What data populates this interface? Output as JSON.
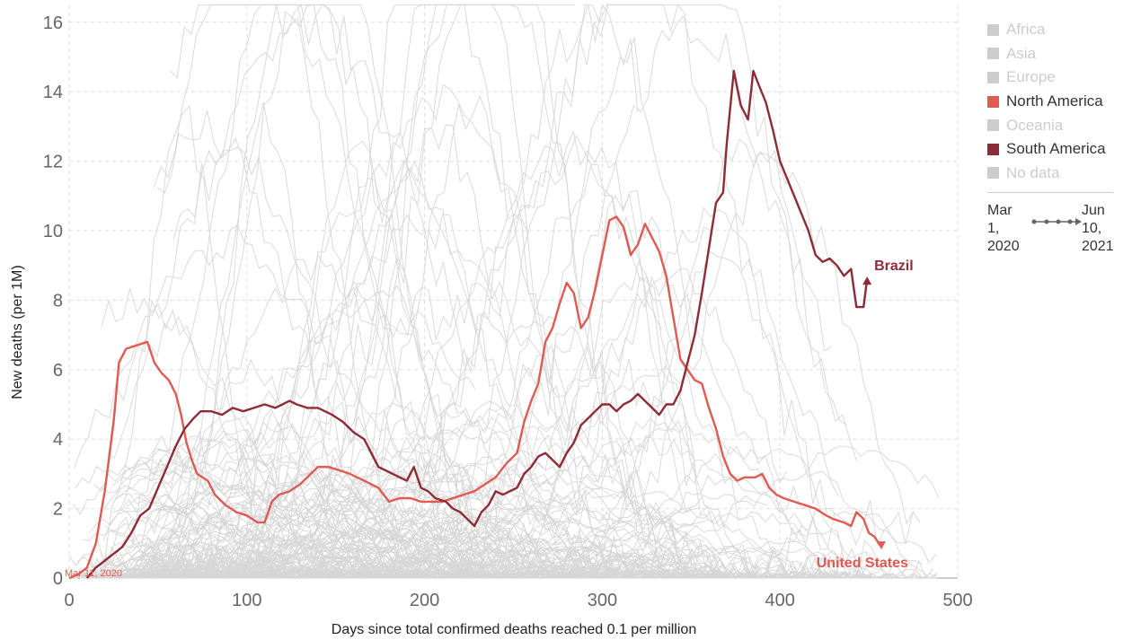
{
  "chart_data": {
    "type": "line",
    "title": "",
    "xlabel": "Days since total confirmed deaths reached 0.1 per million",
    "ylabel": "New deaths (per 1M)",
    "xlim": [
      0,
      500
    ],
    "ylim": [
      0,
      16.5
    ],
    "xticks": [
      "0",
      "100",
      "200",
      "300",
      "400",
      "500"
    ],
    "yticks": [
      "0",
      "2",
      "4",
      "6",
      "8",
      "10",
      "12",
      "14",
      "16"
    ],
    "grid": true,
    "legend_position": "right",
    "legend": [
      {
        "name": "Africa",
        "color": "#cccccc",
        "active": false
      },
      {
        "name": "Asia",
        "color": "#cccccc",
        "active": false
      },
      {
        "name": "Europe",
        "color": "#cccccc",
        "active": false
      },
      {
        "name": "North America",
        "color": "#e05a52",
        "active": true
      },
      {
        "name": "Oceania",
        "color": "#cccccc",
        "active": false
      },
      {
        "name": "South America",
        "color": "#8e2b36",
        "active": true
      },
      {
        "name": "No data",
        "color": "#cccccc",
        "active": false
      }
    ],
    "timeline": {
      "start": [
        "Mar",
        "1,",
        "2020"
      ],
      "end": [
        "Jun",
        "10,",
        "2021"
      ]
    },
    "annotation": "Mar 11, 2020",
    "series": [
      {
        "name": "United States",
        "color": "#e05a52",
        "points": [
          [
            0,
            0
          ],
          [
            5,
            0.1
          ],
          [
            10,
            0.3
          ],
          [
            15,
            1.0
          ],
          [
            20,
            2.5
          ],
          [
            25,
            4.5
          ],
          [
            28,
            6.2
          ],
          [
            32,
            6.6
          ],
          [
            38,
            6.7
          ],
          [
            44,
            6.8
          ],
          [
            48,
            6.2
          ],
          [
            52,
            5.9
          ],
          [
            56,
            5.7
          ],
          [
            60,
            5.3
          ],
          [
            63,
            4.7
          ],
          [
            66,
            3.9
          ],
          [
            69,
            3.4
          ],
          [
            72,
            3.0
          ],
          [
            78,
            2.8
          ],
          [
            82,
            2.4
          ],
          [
            88,
            2.1
          ],
          [
            94,
            1.9
          ],
          [
            100,
            1.8
          ],
          [
            106,
            1.6
          ],
          [
            110,
            1.6
          ],
          [
            114,
            2.2
          ],
          [
            118,
            2.4
          ],
          [
            124,
            2.5
          ],
          [
            130,
            2.7
          ],
          [
            136,
            3.0
          ],
          [
            140,
            3.2
          ],
          [
            146,
            3.2
          ],
          [
            152,
            3.1
          ],
          [
            158,
            3.0
          ],
          [
            166,
            2.8
          ],
          [
            174,
            2.6
          ],
          [
            180,
            2.2
          ],
          [
            186,
            2.3
          ],
          [
            192,
            2.3
          ],
          [
            198,
            2.2
          ],
          [
            204,
            2.2
          ],
          [
            210,
            2.2
          ],
          [
            216,
            2.3
          ],
          [
            222,
            2.4
          ],
          [
            228,
            2.5
          ],
          [
            234,
            2.7
          ],
          [
            240,
            2.9
          ],
          [
            246,
            3.3
          ],
          [
            252,
            3.6
          ],
          [
            256,
            4.5
          ],
          [
            260,
            5.1
          ],
          [
            264,
            5.6
          ],
          [
            268,
            6.8
          ],
          [
            272,
            7.2
          ],
          [
            276,
            7.9
          ],
          [
            280,
            8.5
          ],
          [
            284,
            8.2
          ],
          [
            288,
            7.2
          ],
          [
            292,
            7.5
          ],
          [
            296,
            8.3
          ],
          [
            300,
            9.3
          ],
          [
            304,
            10.3
          ],
          [
            308,
            10.4
          ],
          [
            312,
            10.1
          ],
          [
            316,
            9.3
          ],
          [
            320,
            9.6
          ],
          [
            324,
            10.2
          ],
          [
            328,
            9.8
          ],
          [
            332,
            9.4
          ],
          [
            336,
            8.7
          ],
          [
            340,
            7.5
          ],
          [
            344,
            6.3
          ],
          [
            348,
            6.0
          ],
          [
            352,
            5.7
          ],
          [
            356,
            5.6
          ],
          [
            360,
            4.9
          ],
          [
            364,
            4.3
          ],
          [
            368,
            3.5
          ],
          [
            372,
            3.0
          ],
          [
            376,
            2.8
          ],
          [
            380,
            2.9
          ],
          [
            386,
            2.9
          ],
          [
            390,
            3.0
          ],
          [
            394,
            2.6
          ],
          [
            398,
            2.4
          ],
          [
            402,
            2.3
          ],
          [
            408,
            2.2
          ],
          [
            414,
            2.1
          ],
          [
            420,
            2.0
          ],
          [
            426,
            1.8
          ],
          [
            430,
            1.7
          ],
          [
            436,
            1.6
          ],
          [
            440,
            1.5
          ],
          [
            443,
            1.9
          ],
          [
            447,
            1.7
          ],
          [
            450,
            1.3
          ],
          [
            453,
            1.2
          ],
          [
            457,
            0.9
          ]
        ]
      },
      {
        "name": "Brazil",
        "color": "#8e2b36",
        "points": [
          [
            10,
            0
          ],
          [
            15,
            0.3
          ],
          [
            20,
            0.5
          ],
          [
            25,
            0.7
          ],
          [
            30,
            0.9
          ],
          [
            35,
            1.3
          ],
          [
            40,
            1.8
          ],
          [
            45,
            2.0
          ],
          [
            50,
            2.6
          ],
          [
            55,
            3.2
          ],
          [
            60,
            3.8
          ],
          [
            65,
            4.3
          ],
          [
            70,
            4.6
          ],
          [
            74,
            4.8
          ],
          [
            80,
            4.8
          ],
          [
            86,
            4.7
          ],
          [
            92,
            4.9
          ],
          [
            98,
            4.8
          ],
          [
            104,
            4.9
          ],
          [
            110,
            5.0
          ],
          [
            116,
            4.9
          ],
          [
            120,
            5.0
          ],
          [
            124,
            5.1
          ],
          [
            128,
            5.0
          ],
          [
            134,
            4.9
          ],
          [
            140,
            4.9
          ],
          [
            148,
            4.7
          ],
          [
            154,
            4.5
          ],
          [
            160,
            4.2
          ],
          [
            166,
            4.0
          ],
          [
            170,
            3.6
          ],
          [
            174,
            3.2
          ],
          [
            178,
            3.1
          ],
          [
            182,
            3.0
          ],
          [
            186,
            2.9
          ],
          [
            190,
            2.8
          ],
          [
            194,
            3.2
          ],
          [
            198,
            2.6
          ],
          [
            202,
            2.5
          ],
          [
            206,
            2.3
          ],
          [
            212,
            2.2
          ],
          [
            216,
            2.0
          ],
          [
            220,
            1.9
          ],
          [
            224,
            1.7
          ],
          [
            228,
            1.5
          ],
          [
            232,
            1.9
          ],
          [
            236,
            2.1
          ],
          [
            240,
            2.5
          ],
          [
            244,
            2.4
          ],
          [
            248,
            2.5
          ],
          [
            252,
            2.6
          ],
          [
            256,
            3.0
          ],
          [
            260,
            3.2
          ],
          [
            264,
            3.5
          ],
          [
            268,
            3.6
          ],
          [
            272,
            3.4
          ],
          [
            276,
            3.2
          ],
          [
            280,
            3.6
          ],
          [
            284,
            3.9
          ],
          [
            288,
            4.4
          ],
          [
            292,
            4.6
          ],
          [
            296,
            4.8
          ],
          [
            300,
            5.0
          ],
          [
            304,
            5.0
          ],
          [
            308,
            4.8
          ],
          [
            312,
            5.0
          ],
          [
            316,
            5.1
          ],
          [
            320,
            5.3
          ],
          [
            324,
            5.1
          ],
          [
            328,
            4.9
          ],
          [
            332,
            4.7
          ],
          [
            336,
            5.0
          ],
          [
            340,
            5.0
          ],
          [
            344,
            5.4
          ],
          [
            348,
            6.2
          ],
          [
            352,
            7.0
          ],
          [
            356,
            8.2
          ],
          [
            360,
            9.5
          ],
          [
            364,
            10.8
          ],
          [
            368,
            11.1
          ],
          [
            370,
            12.5
          ],
          [
            374,
            14.6
          ],
          [
            378,
            13.6
          ],
          [
            382,
            13.2
          ],
          [
            385,
            14.6
          ],
          [
            388,
            14.2
          ],
          [
            392,
            13.7
          ],
          [
            396,
            12.9
          ],
          [
            400,
            12.0
          ],
          [
            404,
            11.5
          ],
          [
            408,
            11.0
          ],
          [
            412,
            10.5
          ],
          [
            416,
            10.0
          ],
          [
            420,
            9.3
          ],
          [
            424,
            9.1
          ],
          [
            428,
            9.2
          ],
          [
            432,
            9.0
          ],
          [
            436,
            8.7
          ],
          [
            440,
            8.9
          ],
          [
            443,
            7.8
          ],
          [
            447,
            7.8
          ],
          [
            449,
            8.6
          ]
        ]
      }
    ]
  }
}
